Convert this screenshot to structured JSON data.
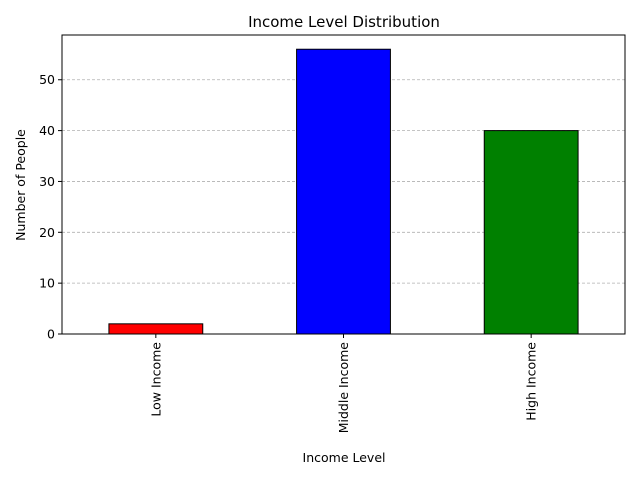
{
  "chart_data": {
    "type": "bar",
    "title": "Income Level Distribution",
    "xlabel": "Income Level",
    "ylabel": "Number of People",
    "categories": [
      "Low Income",
      "Middle Income",
      "High Income"
    ],
    "values": [
      2,
      56,
      40
    ],
    "colors": [
      "#ff0000",
      "#0000ff",
      "#008000"
    ],
    "edge_color": "#000000",
    "ylim": [
      0,
      58.8
    ],
    "yticks": [
      0,
      10,
      20,
      30,
      40,
      50
    ],
    "grid": {
      "axis": "y",
      "style": "dashed",
      "color": "#b0b0b0"
    },
    "xtick_rotation": 90,
    "legend": "none"
  }
}
